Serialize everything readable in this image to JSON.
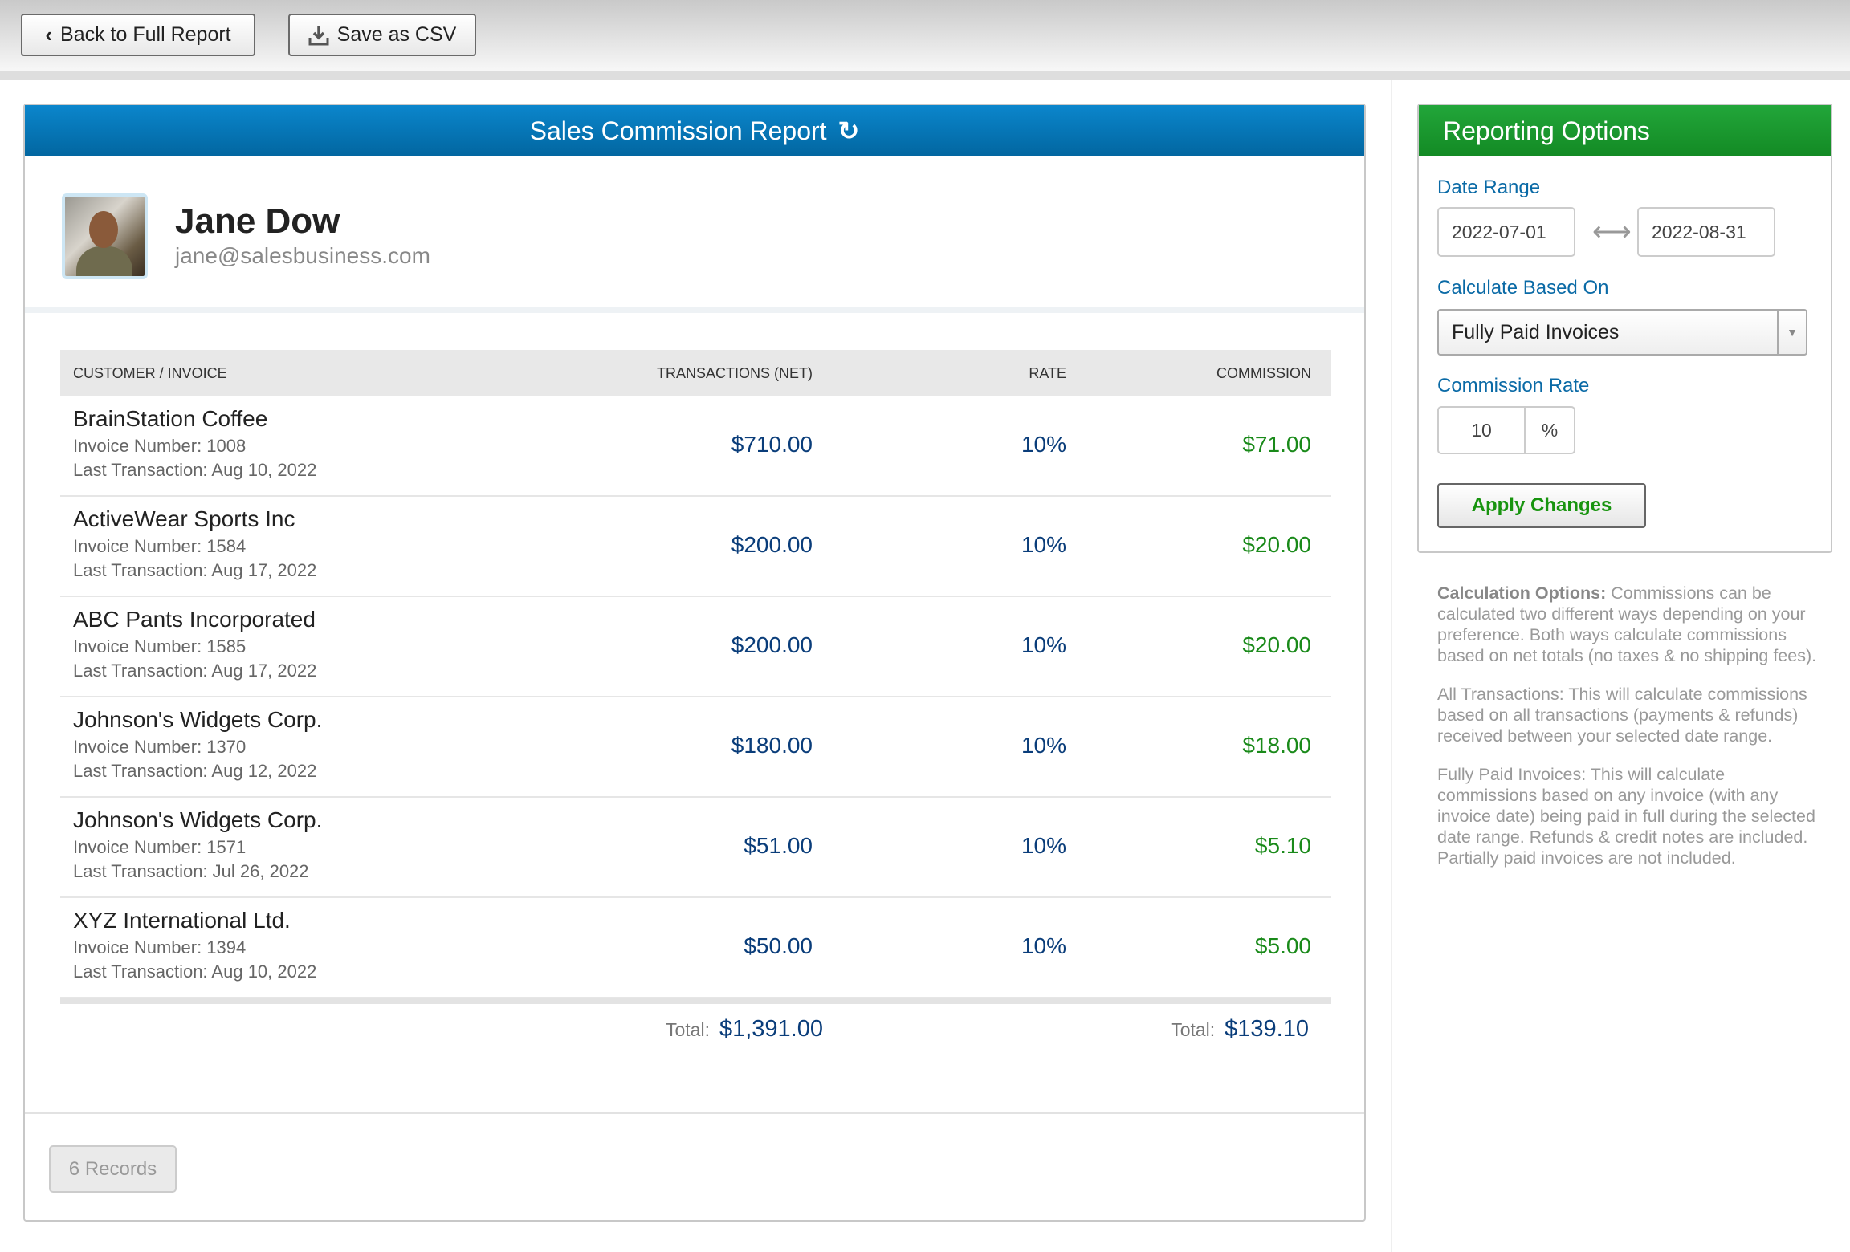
{
  "toolbar": {
    "back_label": "Back to Full Report",
    "csv_label": "Save as CSV"
  },
  "report": {
    "title": "Sales Commission Report",
    "user": {
      "name": "Jane Dow",
      "email": "jane@salesbusiness.com"
    },
    "columns": [
      "CUSTOMER / INVOICE",
      "TRANSACTIONS (NET)",
      "RATE",
      "COMMISSION"
    ],
    "rows": [
      {
        "customer": "BrainStation Coffee",
        "invoice": "Invoice Number: 1008",
        "last": "Last Transaction: Aug 10, 2022",
        "transactions": "$710.00",
        "rate": "10%",
        "commission": "$71.00"
      },
      {
        "customer": "ActiveWear Sports Inc",
        "invoice": "Invoice Number: 1584",
        "last": "Last Transaction: Aug 17, 2022",
        "transactions": "$200.00",
        "rate": "10%",
        "commission": "$20.00"
      },
      {
        "customer": "ABC Pants Incorporated",
        "invoice": "Invoice Number: 1585",
        "last": "Last Transaction: Aug 17, 2022",
        "transactions": "$200.00",
        "rate": "10%",
        "commission": "$20.00"
      },
      {
        "customer": "Johnson's Widgets Corp.",
        "invoice": "Invoice Number: 1370",
        "last": "Last Transaction: Aug 12, 2022",
        "transactions": "$180.00",
        "rate": "10%",
        "commission": "$18.00"
      },
      {
        "customer": "Johnson's Widgets Corp.",
        "invoice": "Invoice Number: 1571",
        "last": "Last Transaction: Jul 26, 2022",
        "transactions": "$51.00",
        "rate": "10%",
        "commission": "$5.10"
      },
      {
        "customer": "XYZ International Ltd.",
        "invoice": "Invoice Number: 1394",
        "last": "Last Transaction: Aug 10, 2022",
        "transactions": "$50.00",
        "rate": "10%",
        "commission": "$5.00"
      }
    ],
    "total_label": "Total:",
    "total_transactions": "$1,391.00",
    "total_commission": "$139.10",
    "records": "6 Records"
  },
  "options": {
    "title": "Reporting Options",
    "date_range_label": "Date Range",
    "date_from": "2022-07-01",
    "date_to": "2022-08-31",
    "calc_label": "Calculate Based On",
    "calc_value": "Fully Paid Invoices",
    "rate_label": "Commission Rate",
    "rate_value": "10",
    "rate_unit": "%",
    "apply_label": "Apply Changes"
  },
  "help": {
    "calc_title": "Calculation Options:",
    "calc_text": " Commissions can be calculated two different ways depending on your preference. Both ways calculate commissions based on net totals (no taxes & no shipping fees).",
    "all_text": "All Transactions: This will calculate commissions based on all transactions (payments & refunds) received between your selected date range.",
    "paid_text": "Fully Paid Invoices: This will calculate commissions based on any invoice (with any invoice date) being paid in full during the selected date range. Refunds & credit notes are included. Partially paid invoices are not included."
  },
  "colors": {
    "header_blue": "#0b78bb",
    "header_green": "#1e9e33",
    "money": "#0a3d7a",
    "commission": "#1a8a1a"
  }
}
